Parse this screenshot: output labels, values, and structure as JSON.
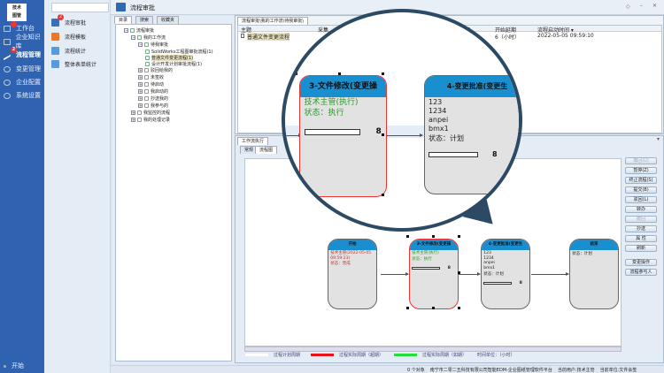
{
  "logo": "技术图管",
  "nav": {
    "items": [
      {
        "label": "工作台",
        "badge": ""
      },
      {
        "label": "企业知识库"
      },
      {
        "label": "流程管理",
        "badge": "2"
      },
      {
        "label": "变更管理"
      },
      {
        "label": "企业配置"
      },
      {
        "label": "系统设置"
      }
    ],
    "start": "开始"
  },
  "sub": {
    "search_placeholder": "",
    "items": [
      {
        "label": "流程审批",
        "badge": "2"
      },
      {
        "label": "流程模板"
      },
      {
        "label": "流程统计"
      },
      {
        "label": "整体表单统计"
      }
    ]
  },
  "title": "流程审批",
  "tree": {
    "tabs": [
      "目录",
      "搜索",
      "收藏夹"
    ],
    "rows": [
      "流程审批",
      "我的工作流",
      "待我审批",
      "SolidWorks工程图审批流程(1)",
      "普通文件变更流程(1)",
      "设计开发计划审批流程(1)",
      "驳回给我的",
      "未签收",
      "待启动",
      "我启动的",
      "抄送我的",
      "我参与的",
      "我监控的流程",
      "我的处理记录"
    ]
  },
  "list": {
    "tab": "流程审批\\我的工作流\\待我审批\\",
    "columns": [
      "主题",
      "采集",
      "时间",
      "开始延期",
      "流程启动时间 ▾"
    ],
    "rows": [
      {
        "subject": "普通文件变更流程",
        "delay": "6（小时）",
        "start": "2022-05-05 09:59:10"
      }
    ]
  },
  "exec": {
    "title": "工作流执行",
    "tabs": [
      "常规",
      "流程图"
    ],
    "buttons": [
      {
        "label": "撤回(U)",
        "disabled": true
      },
      {
        "label": "暂停(Z)"
      },
      {
        "label": "终止流程(S)"
      },
      {
        "label": "提交(B)"
      },
      {
        "label": "驳回(L)"
      },
      {
        "label": "转办"
      },
      {
        "label": "撤回",
        "disabled": true
      },
      {
        "label": "抄送"
      },
      {
        "label": "属 性"
      },
      {
        "label": "刷新"
      },
      {
        "label": "变更操作"
      },
      {
        "label": "流程参与人"
      }
    ]
  },
  "flow": {
    "nodes": [
      {
        "title": "开始",
        "lines": [
          "技术主管(2022-05-05",
          "09:59:23)"
        ],
        "status": "状态：完成",
        "color": "#b33"
      },
      {
        "title": "3-文件修改(变更操",
        "lines": [
          "技术主管(执行)"
        ],
        "status": "状态：执行",
        "color": "#2a9a2a",
        "progress": "8"
      },
      {
        "title": "4-变更批准(变更生",
        "lines": [
          "123",
          "1234",
          "anpei",
          "bmx1"
        ],
        "status": "状态：计划",
        "color": "#222",
        "progress": "8"
      },
      {
        "title": "结束",
        "lines": [],
        "status": "状态：计划",
        "color": "#222"
      }
    ]
  },
  "legend": [
    {
      "label": "过程计划周期",
      "color": "#ffffff"
    },
    {
      "label": "过程实际周期（超期）",
      "color": "#e8121b"
    },
    {
      "label": "过程实际周期（如期）",
      "color": "#22e03a"
    },
    {
      "label": "时间单位：（小时）"
    }
  ],
  "status": {
    "objects": "0 个对象",
    "company": "南宁市二零二五科技有限公司智能EDM-企业图纸管理软件平台",
    "user": "当前用户:技术主管",
    "unit": "当前单位:文件会签"
  }
}
